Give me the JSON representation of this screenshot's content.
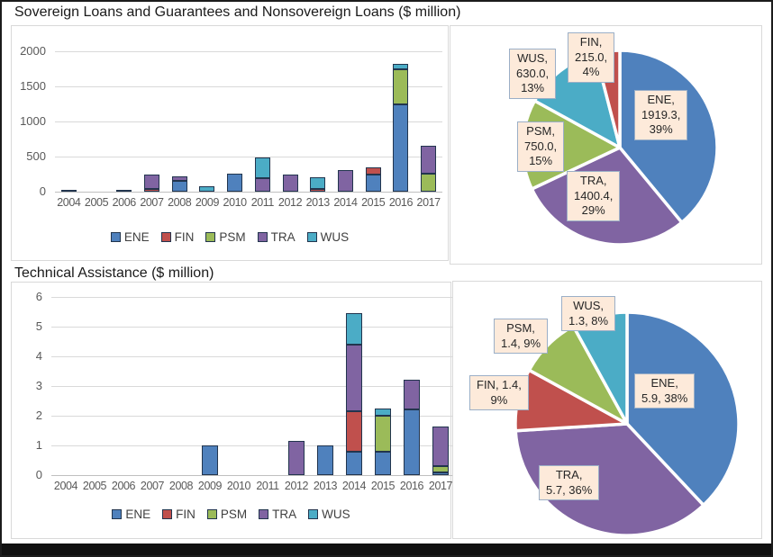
{
  "page": {
    "section1_title": "Sovereign Loans and Guarantees and Nonsovereign Loans ($ million)",
    "section2_title": "Technical Assistance ($ million)"
  },
  "palette": {
    "ENE": "#4F81BD",
    "FIN": "#C0504D",
    "PSM": "#9BBB59",
    "TRA": "#8064A2",
    "WUS": "#4BACC6",
    "bar_outline": "#22354e",
    "grid_line": "#d9d9d9",
    "axis_text": "#595959",
    "legend_text": "#404040",
    "label_box_bg": "#fdeada",
    "label_box_border": "#9bafc7",
    "title_text": "#1a1a1a"
  },
  "chart_data": [
    {
      "id": "sov-bars",
      "type": "bar",
      "stacked": true,
      "title": "Sovereign Loans and Guarantees and Nonsovereign Loans ($ million)",
      "xlabel": "",
      "ylabel": "",
      "ylim": [
        0,
        2000
      ],
      "yticks": [
        0,
        500,
        1000,
        1500,
        2000
      ],
      "grid": true,
      "legend_position": "bottom",
      "legend": [
        "ENE",
        "FIN",
        "PSM",
        "TRA",
        "WUS"
      ],
      "categories": [
        "2004",
        "2005",
        "2006",
        "2007",
        "2008",
        "2009",
        "2010",
        "2011",
        "2012",
        "2013",
        "2014",
        "2015",
        "2016",
        "2017"
      ],
      "series": [
        {
          "name": "ENE",
          "values": [
            0,
            0,
            0,
            0,
            150,
            0,
            260,
            0,
            0,
            0,
            0,
            250,
            1250,
            0
          ]
        },
        {
          "name": "FIN",
          "values": [
            0,
            0,
            10,
            45,
            0,
            0,
            0,
            0,
            0,
            45,
            0,
            100,
            0,
            0
          ]
        },
        {
          "name": "PSM",
          "values": [
            0,
            0,
            0,
            0,
            0,
            0,
            0,
            0,
            0,
            0,
            0,
            0,
            490,
            255
          ]
        },
        {
          "name": "TRA",
          "values": [
            0,
            0,
            0,
            205,
            70,
            0,
            0,
            190,
            250,
            0,
            310,
            0,
            0,
            400
          ]
        },
        {
          "name": "WUS",
          "values": [
            30,
            0,
            0,
            0,
            0,
            75,
            0,
            300,
            0,
            160,
            0,
            0,
            80,
            0
          ]
        }
      ]
    },
    {
      "id": "sov-pie",
      "type": "pie",
      "title": "",
      "legend_position": "none",
      "direction": "clockwise",
      "start_angle_deg": 0,
      "slices": [
        {
          "name": "ENE",
          "value": 1919.3,
          "pct": 39,
          "label_lines": [
            "ENE,",
            "1919.3,",
            "39%"
          ]
        },
        {
          "name": "TRA",
          "value": 1400.4,
          "pct": 29,
          "label_lines": [
            "TRA,",
            "1400.4,",
            "29%"
          ]
        },
        {
          "name": "PSM",
          "value": 750.0,
          "pct": 15,
          "label_lines": [
            "PSM,",
            "750.0,",
            "15%"
          ]
        },
        {
          "name": "WUS",
          "value": 630.0,
          "pct": 13,
          "label_lines": [
            "WUS,",
            "630.0,",
            "13%"
          ]
        },
        {
          "name": "FIN",
          "value": 215.0,
          "pct": 4,
          "label_lines": [
            "FIN,",
            "215.0,",
            "4%"
          ]
        }
      ]
    },
    {
      "id": "ta-bars",
      "type": "bar",
      "stacked": true,
      "title": "Technical Assistance ($ million)",
      "xlabel": "",
      "ylabel": "",
      "ylim": [
        0,
        6
      ],
      "yticks": [
        0,
        1,
        2,
        3,
        4,
        5,
        6
      ],
      "grid": true,
      "legend_position": "bottom",
      "legend": [
        "ENE",
        "FIN",
        "PSM",
        "TRA",
        "WUS"
      ],
      "categories": [
        "2004",
        "2005",
        "2006",
        "2007",
        "2008",
        "2009",
        "2010",
        "2011",
        "2012",
        "2013",
        "2014",
        "2015",
        "2016",
        "2017"
      ],
      "series": [
        {
          "name": "ENE",
          "values": [
            0,
            0,
            0,
            0,
            0,
            1.0,
            0,
            0,
            0,
            1.0,
            0.8,
            0.8,
            2.2,
            0.1
          ]
        },
        {
          "name": "FIN",
          "values": [
            0,
            0,
            0,
            0,
            0,
            0,
            0,
            0,
            0,
            0,
            1.35,
            0,
            0,
            0
          ]
        },
        {
          "name": "PSM",
          "values": [
            0,
            0,
            0,
            0,
            0,
            0,
            0,
            0,
            0,
            0,
            0,
            1.2,
            0,
            0.2
          ]
        },
        {
          "name": "TRA",
          "values": [
            0,
            0,
            0,
            0,
            0,
            0,
            0,
            0,
            1.15,
            0,
            2.25,
            0,
            1.0,
            1.35
          ]
        },
        {
          "name": "WUS",
          "values": [
            0,
            0,
            0,
            0,
            0,
            0,
            0,
            0,
            0,
            0,
            1.05,
            0.25,
            0,
            0
          ]
        }
      ]
    },
    {
      "id": "ta-pie",
      "type": "pie",
      "title": "",
      "legend_position": "none",
      "direction": "clockwise",
      "start_angle_deg": 0,
      "slices": [
        {
          "name": "ENE",
          "value": 5.9,
          "pct": 38,
          "label_lines": [
            "ENE,",
            "5.9, 38%"
          ]
        },
        {
          "name": "TRA",
          "value": 5.7,
          "pct": 36,
          "label_lines": [
            "TRA,",
            "5.7, 36%"
          ]
        },
        {
          "name": "FIN",
          "value": 1.4,
          "pct": 9,
          "label_lines": [
            "FIN, 1.4,",
            "9%"
          ]
        },
        {
          "name": "PSM",
          "value": 1.4,
          "pct": 9,
          "label_lines": [
            "PSM,",
            "1.4, 9%"
          ]
        },
        {
          "name": "WUS",
          "value": 1.3,
          "pct": 8,
          "label_lines": [
            "WUS,",
            "1.3, 8%"
          ]
        }
      ]
    }
  ]
}
